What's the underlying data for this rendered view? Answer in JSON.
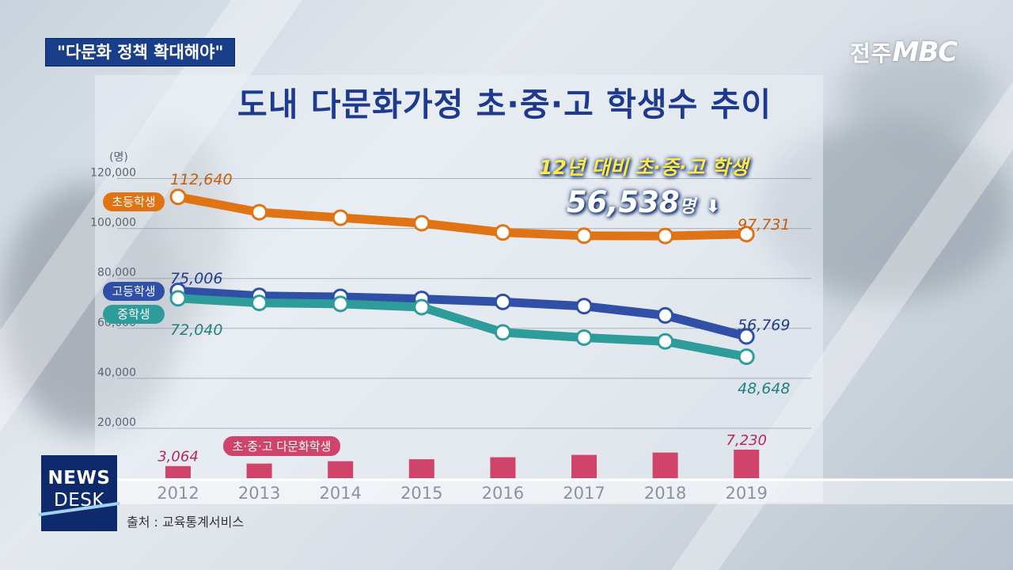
{
  "header": {
    "tag": "\"다문화 정책 확대해야\"",
    "logo_prefix": "전주",
    "logo_brand": "MBC",
    "title": "도내 다문화가정 초·중·고 학생수 추이"
  },
  "highlight": {
    "line1": "12년 대비 초·중·고 학생",
    "value": "56,538",
    "unit": "명",
    "arrow": "⬇"
  },
  "footer": {
    "newsdesk_line1": "NEWS",
    "newsdesk_line2": "DESK",
    "source": "출처 : 교육통계서비스"
  },
  "colors": {
    "elementary": "#e07414",
    "high": "#3050a8",
    "middle": "#2f9c9c",
    "total": "#d0436b",
    "title": "#1d3a8f"
  },
  "chart_data": {
    "type": "line",
    "ylabel": "(명)",
    "ylim": [
      20000,
      120000
    ],
    "yticks": [
      20000,
      40000,
      60000,
      80000,
      100000,
      120000
    ],
    "ytick_labels": [
      "20,000",
      "40,000",
      "60,000",
      "80,000",
      "100,000",
      "120,000"
    ],
    "categories": [
      "2012",
      "2013",
      "2014",
      "2015",
      "2016",
      "2017",
      "2018",
      "2019"
    ],
    "series": [
      {
        "name": "초등학생",
        "key": "elementary",
        "values": [
          112640,
          106500,
          104300,
          102100,
          98400,
          97100,
          97000,
          97731
        ],
        "labels": {
          "0": "112,640",
          "7": "97,731"
        }
      },
      {
        "name": "고등학생",
        "key": "high",
        "values": [
          75006,
          73000,
          72600,
          71800,
          70600,
          68900,
          65200,
          56769
        ],
        "labels": {
          "0": "75,006",
          "7": "56,769"
        }
      },
      {
        "name": "중학생",
        "key": "middle",
        "values": [
          72040,
          70200,
          69800,
          68500,
          58400,
          56300,
          54800,
          48648
        ],
        "labels": {
          "0": "72,040",
          "7": "48,648"
        }
      }
    ],
    "bar_series": {
      "name": "초·중·고 다문화학생",
      "key": "total",
      "values": [
        3064,
        3700,
        4300,
        4800,
        5300,
        5900,
        6500,
        7230
      ],
      "labels": {
        "0": "3,064",
        "7": "7,230"
      }
    }
  }
}
